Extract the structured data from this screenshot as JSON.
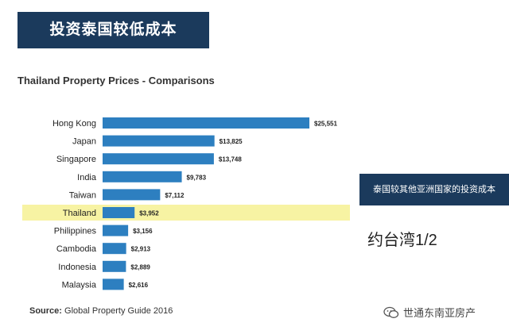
{
  "banner": {
    "title": "投资泰国较低成本"
  },
  "callout": {
    "text": "泰国较其他亚洲国家的投资成本"
  },
  "ratio_note": "约台湾1/2",
  "source": {
    "label": "Source:",
    "text": "Global Property Guide 2016"
  },
  "watermark": {
    "icon": "wechat-icon",
    "text": "世通东南亚房产"
  },
  "colors": {
    "bar": "#2d7fc0",
    "highlight": "#f7f3a3",
    "banner": "#1b3a5c"
  },
  "chart_data": {
    "type": "bar",
    "orientation": "horizontal",
    "title": "Thailand Property Prices - Comparisons",
    "categories": [
      "Hong Kong",
      "Japan",
      "Singapore",
      "India",
      "Taiwan",
      "Thailand",
      "Philippines",
      "Cambodia",
      "Indonesia",
      "Malaysia"
    ],
    "values": [
      25551,
      13825,
      13748,
      9783,
      7112,
      3952,
      3156,
      2913,
      2889,
      2616
    ],
    "value_labels": [
      "$25,551",
      "$13,825",
      "$13,748",
      "$9,783",
      "$7,112",
      "$3,952",
      "$3,156",
      "$2,913",
      "$2,889",
      "$2,616"
    ],
    "highlighted_category": "Thailand",
    "xlim": [
      0,
      25551
    ],
    "grid": false,
    "legend": "none"
  }
}
